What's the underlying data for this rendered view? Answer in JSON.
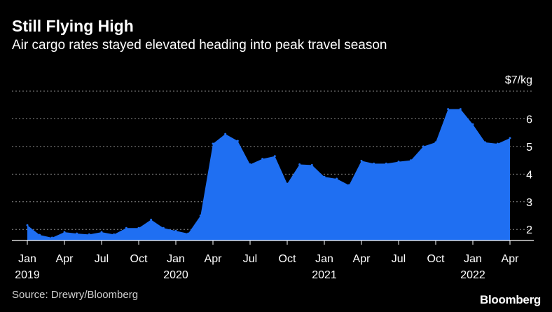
{
  "header": {
    "title": "Still Flying High",
    "subtitle": "Air cargo rates stayed elevated heading into peak travel season"
  },
  "footer": {
    "source": "Source: Drewry/Bloomberg",
    "brand": "Bloomberg"
  },
  "colors": {
    "background": "#000000",
    "area": "#1f6ff2",
    "gridline": "#8a8a8a",
    "text": "#ffffff"
  },
  "chart_data": {
    "type": "area",
    "unit_label": "$7/kg",
    "ylim": [
      1.6,
      7
    ],
    "yticks": [
      2,
      3,
      4,
      5,
      6
    ],
    "grid": true,
    "x_start": "2019-01",
    "xticks": [
      {
        "month": 0,
        "label": "Jan",
        "year": "2019"
      },
      {
        "month": 3,
        "label": "Apr",
        "year": ""
      },
      {
        "month": 6,
        "label": "Jul",
        "year": ""
      },
      {
        "month": 9,
        "label": "Oct",
        "year": ""
      },
      {
        "month": 12,
        "label": "Jan",
        "year": "2020"
      },
      {
        "month": 15,
        "label": "Apr",
        "year": ""
      },
      {
        "month": 18,
        "label": "Jul",
        "year": ""
      },
      {
        "month": 21,
        "label": "Oct",
        "year": ""
      },
      {
        "month": 24,
        "label": "Jan",
        "year": "2021"
      },
      {
        "month": 27,
        "label": "Apr",
        "year": ""
      },
      {
        "month": 30,
        "label": "Jul",
        "year": ""
      },
      {
        "month": 33,
        "label": "Oct",
        "year": ""
      },
      {
        "month": 36,
        "label": "Jan",
        "year": "2022"
      },
      {
        "month": 39,
        "label": "Apr",
        "year": ""
      }
    ],
    "series": [
      {
        "values": [
          2.15,
          1.8,
          1.7,
          1.9,
          1.85,
          1.82,
          1.9,
          1.82,
          2.05,
          2.05,
          2.35,
          2.05,
          1.95,
          1.85,
          2.5,
          5.1,
          5.45,
          5.2,
          4.35,
          4.55,
          4.65,
          3.65,
          4.35,
          4.33,
          3.9,
          3.83,
          3.6,
          4.48,
          4.38,
          4.38,
          4.45,
          4.5,
          5.0,
          5.15,
          6.35,
          6.35,
          5.8,
          5.15,
          5.1,
          5.3
        ]
      }
    ]
  }
}
